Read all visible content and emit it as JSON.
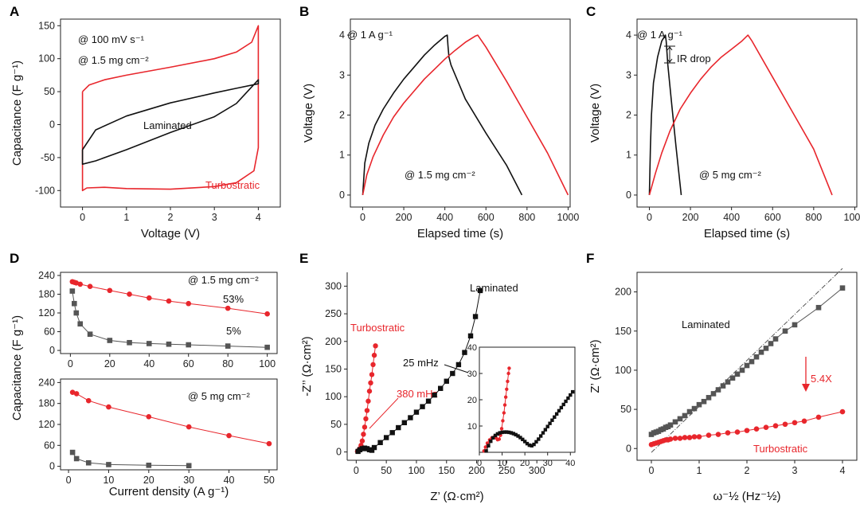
{
  "colors": {
    "red": "#e8262c",
    "black": "#111111",
    "gray": "#555555"
  },
  "chart_data": [
    {
      "id": "A",
      "panel_label": "A",
      "type": "line",
      "xlabel": "Voltage (V)",
      "ylabel": "Capacitance (F g⁻¹)",
      "xlim": [
        -0.5,
        4.5
      ],
      "ylim": [
        -125,
        160
      ],
      "xticks": [
        0,
        1,
        2,
        3,
        4
      ],
      "yticks": [
        -100,
        -50,
        0,
        50,
        100,
        150
      ],
      "annotations": [
        "@ 100 mV s⁻¹",
        "@ 1.5 mg cm⁻²"
      ],
      "series": [
        {
          "name": "Turbostratic",
          "label": "Turbostratic",
          "color": "#e8262c",
          "x": [
            0,
            0.15,
            0.5,
            1,
            2,
            3,
            3.5,
            3.85,
            4,
            4,
            3.9,
            3.5,
            3,
            2,
            1,
            0.5,
            0.1,
            0,
            0
          ],
          "y": [
            50,
            60,
            68,
            75,
            87,
            100,
            110,
            125,
            150,
            -35,
            -70,
            -88,
            -94,
            -98,
            -97,
            -95,
            -96,
            -100,
            50
          ]
        },
        {
          "name": "Laminated",
          "label": "Laminated",
          "color": "#111111",
          "x": [
            0,
            0.3,
            1,
            2,
            3,
            3.5,
            4,
            4,
            3.5,
            3,
            2,
            1,
            0.3,
            0,
            0
          ],
          "y": [
            -38,
            -8,
            13,
            33,
            48,
            55,
            62,
            68,
            32,
            12,
            -12,
            -38,
            -55,
            -60,
            -38
          ]
        }
      ]
    },
    {
      "id": "B",
      "panel_label": "B",
      "type": "line",
      "xlabel": "Elapsed time (s)",
      "ylabel": "Voltage (V)",
      "xlim": [
        -60,
        1010
      ],
      "ylim": [
        -0.3,
        4.4
      ],
      "xticks": [
        0,
        200,
        400,
        600,
        800,
        1000
      ],
      "yticks": [
        0,
        1,
        2,
        3,
        4
      ],
      "annotations": [
        "@ 1 A g⁻¹",
        "@ 1.5 mg cm⁻²"
      ],
      "series": [
        {
          "name": "Laminated",
          "color": "#111111",
          "x": [
            0,
            10,
            30,
            60,
            100,
            150,
            200,
            250,
            300,
            350,
            400,
            412,
            415,
            420,
            430,
            500,
            600,
            700,
            775
          ],
          "y": [
            0,
            0.8,
            1.3,
            1.75,
            2.15,
            2.55,
            2.9,
            3.2,
            3.5,
            3.75,
            3.97,
            4.0,
            3.75,
            3.45,
            3.25,
            2.4,
            1.55,
            0.75,
            0
          ]
        },
        {
          "name": "Turbostratic",
          "color": "#e8262c",
          "x": [
            0,
            20,
            50,
            100,
            150,
            200,
            250,
            300,
            350,
            400,
            450,
            500,
            550,
            560,
            600,
            700,
            800,
            900,
            1000
          ],
          "y": [
            0,
            0.5,
            0.95,
            1.5,
            1.95,
            2.3,
            2.6,
            2.9,
            3.15,
            3.4,
            3.62,
            3.82,
            3.98,
            4.0,
            3.7,
            2.85,
            1.95,
            1.05,
            0
          ]
        }
      ]
    },
    {
      "id": "C",
      "panel_label": "C",
      "type": "line",
      "xlabel": "Elapsed time (s)",
      "ylabel": "Voltage (V)",
      "xlim": [
        -60,
        1010
      ],
      "ylim": [
        -0.3,
        4.4
      ],
      "xticks": [
        0,
        200,
        400,
        600,
        800,
        1000
      ],
      "yticks": [
        0,
        1,
        2,
        3,
        4
      ],
      "annotations": [
        "@ 1 A g⁻¹",
        "IR drop",
        "@ 5 mg cm⁻²"
      ],
      "series": [
        {
          "name": "Laminated",
          "color": "#111111",
          "x": [
            0,
            5,
            10,
            20,
            40,
            60,
            78,
            82,
            90,
            110,
            130,
            155
          ],
          "y": [
            0,
            1.2,
            2.0,
            2.8,
            3.45,
            3.85,
            4.0,
            3.85,
            3.25,
            2.2,
            1.2,
            0
          ]
        },
        {
          "name": "Turbostratic",
          "color": "#e8262c",
          "x": [
            0,
            30,
            60,
            100,
            150,
            200,
            250,
            300,
            350,
            400,
            450,
            480,
            500,
            600,
            700,
            800,
            890
          ],
          "y": [
            0,
            0.55,
            1.05,
            1.6,
            2.15,
            2.55,
            2.9,
            3.2,
            3.45,
            3.65,
            3.85,
            4.0,
            3.85,
            2.95,
            2.05,
            1.15,
            0
          ]
        }
      ]
    },
    {
      "id": "D1",
      "panel_label": "D",
      "type": "line",
      "xlabel": "",
      "ylabel": "",
      "xlim": [
        -5,
        105
      ],
      "ylim": [
        -10,
        250
      ],
      "xticks": [
        0,
        20,
        40,
        60,
        80,
        100
      ],
      "yticks": [
        0,
        60,
        120,
        180,
        240
      ],
      "annotations": [
        "@ 1.5 mg cm⁻²",
        "53%",
        "5%"
      ],
      "series": [
        {
          "name": "Turbostratic",
          "color": "#e8262c",
          "x": [
            1,
            2,
            3,
            5,
            10,
            20,
            30,
            40,
            50,
            60,
            80,
            100
          ],
          "y": [
            220,
            218,
            216,
            212,
            205,
            192,
            180,
            168,
            158,
            150,
            135,
            117
          ]
        },
        {
          "name": "Laminated",
          "color": "#555555",
          "x": [
            1,
            2,
            3,
            5,
            10,
            20,
            30,
            40,
            50,
            60,
            80,
            100
          ],
          "y": [
            190,
            150,
            120,
            85,
            52,
            32,
            25,
            22,
            20,
            18,
            14,
            10
          ]
        }
      ]
    },
    {
      "id": "D2",
      "panel_label": "",
      "type": "line",
      "xlabel": "Current density (A g⁻¹)",
      "ylabel": "Capacitance (F g⁻¹)",
      "xlim": [
        -2,
        52
      ],
      "ylim": [
        -10,
        250
      ],
      "xticks": [
        0,
        10,
        20,
        30,
        40,
        50
      ],
      "yticks": [
        0,
        60,
        120,
        180,
        240
      ],
      "annotations": [
        "@ 5 mg cm⁻²"
      ],
      "series": [
        {
          "name": "Turbostratic",
          "color": "#e8262c",
          "x": [
            1,
            2,
            5,
            10,
            20,
            30,
            40,
            50
          ],
          "y": [
            212,
            208,
            188,
            170,
            142,
            113,
            88,
            65
          ]
        },
        {
          "name": "Laminated",
          "color": "#555555",
          "x": [
            1,
            2,
            5,
            10,
            20,
            30
          ],
          "y": [
            40,
            22,
            10,
            5,
            3,
            2
          ]
        }
      ]
    },
    {
      "id": "E",
      "panel_label": "E",
      "type": "scatter",
      "xlabel": "Z’ (Ω·cm²)",
      "ylabel": "-Z’’ (Ω·cm²)",
      "xlim": [
        -15,
        350
      ],
      "ylim": [
        -15,
        325
      ],
      "xticks": [
        0,
        50,
        100,
        150,
        200,
        250,
        300
      ],
      "yticks": [
        0,
        50,
        100,
        150,
        200,
        250,
        300
      ],
      "annotations": [
        "Laminated",
        "Turbostratic",
        "25 mHz",
        "380 mHz"
      ],
      "series": [
        {
          "name": "Turbostratic",
          "color": "#e8262c",
          "x": [
            2,
            4,
            6,
            8,
            10,
            12,
            14,
            16,
            18,
            20,
            22,
            24,
            26,
            28,
            30,
            32
          ],
          "y": [
            1,
            3,
            6,
            12,
            20,
            32,
            45,
            60,
            75,
            92,
            110,
            125,
            140,
            158,
            175,
            192
          ]
        },
        {
          "name": "Laminated",
          "color": "#111111",
          "x": [
            3,
            6,
            10,
            14,
            18,
            22,
            26,
            30,
            40,
            50,
            60,
            70,
            80,
            90,
            100,
            110,
            120,
            130,
            140,
            150,
            160,
            170,
            180,
            190,
            198,
            206
          ],
          "y": [
            1,
            4,
            6,
            7,
            6,
            4,
            3,
            8,
            17,
            26,
            35,
            44,
            53,
            62,
            72,
            82,
            92,
            103,
            115,
            128,
            142,
            158,
            180,
            210,
            245,
            292
          ]
        }
      ]
    },
    {
      "id": "E_inset",
      "panel_label": "",
      "type": "scatter",
      "xlim": [
        0,
        42
      ],
      "ylim": [
        0,
        40
      ],
      "xticks": [
        0,
        10,
        20,
        30,
        40
      ],
      "yticks": [
        10,
        20,
        30,
        40
      ],
      "series": [
        {
          "name": "Turbostratic",
          "color": "#e8262c",
          "x": [
            2,
            2.7,
            3.5,
            4.5,
            5.5,
            6.5,
            7.3,
            8,
            8.7,
            9.3,
            9.8,
            10.3,
            10.8,
            11.2,
            11.6,
            12,
            12.4,
            12.8,
            13.1
          ],
          "y": [
            0.5,
            2,
            3.5,
            4.7,
            5.5,
            5.8,
            5.5,
            4.8,
            5,
            6.5,
            9,
            12,
            15,
            18,
            21,
            24,
            27,
            30,
            32
          ]
        },
        {
          "name": "Laminated",
          "color": "#111111",
          "x": [
            3,
            4,
            5,
            6,
            7,
            8,
            9,
            10,
            11,
            12,
            13,
            14,
            15,
            16,
            17,
            18,
            19,
            20,
            21,
            22,
            23,
            24,
            25,
            26,
            27,
            28,
            29,
            30,
            31,
            32,
            33,
            34,
            35,
            36,
            37,
            38,
            39,
            40,
            41
          ],
          "y": [
            0.5,
            2.5,
            4.2,
            5.5,
            6.4,
            7,
            7.4,
            7.6,
            7.7,
            7.7,
            7.6,
            7.4,
            7.1,
            6.7,
            6.2,
            5.6,
            4.9,
            4.1,
            3.3,
            2.7,
            2.5,
            3,
            4,
            5,
            6.2,
            7.4,
            8.6,
            9.8,
            11,
            12.2,
            13.4,
            14.6,
            15.8,
            17,
            18.2,
            19.4,
            20.6,
            21.8,
            23
          ]
        }
      ]
    },
    {
      "id": "F",
      "panel_label": "F",
      "type": "scatter",
      "xlabel": "ω⁻½ (Hz⁻½)",
      "ylabel": "Z’ (Ω·cm²)",
      "xlim": [
        -0.3,
        4.3
      ],
      "ylim": [
        -15,
        225
      ],
      "xticks": [
        0,
        1,
        2,
        3,
        4
      ],
      "yticks": [
        0,
        50,
        100,
        150,
        200
      ],
      "annotations": [
        "Laminated",
        "5.4X",
        "Turbostratic"
      ],
      "series": [
        {
          "name": "Laminated",
          "color": "#555555",
          "x": [
            0,
            0.05,
            0.1,
            0.15,
            0.2,
            0.25,
            0.3,
            0.35,
            0.4,
            0.5,
            0.6,
            0.7,
            0.8,
            0.9,
            1.0,
            1.1,
            1.2,
            1.3,
            1.4,
            1.5,
            1.6,
            1.7,
            1.8,
            1.9,
            2.0,
            2.1,
            2.2,
            2.3,
            2.4,
            2.5,
            2.6,
            2.8,
            3.0,
            3.5,
            4.0
          ],
          "y": [
            18,
            20,
            21,
            22,
            24,
            25,
            27,
            28,
            30,
            34,
            38,
            42,
            47,
            51,
            56,
            60,
            65,
            70,
            75,
            80,
            85,
            90,
            95,
            100,
            106,
            111,
            117,
            123,
            128,
            134,
            140,
            150,
            158,
            180,
            205
          ]
        },
        {
          "name": "Turbostratic",
          "color": "#e8262c",
          "x": [
            0,
            0.05,
            0.1,
            0.15,
            0.2,
            0.25,
            0.3,
            0.35,
            0.4,
            0.5,
            0.6,
            0.7,
            0.8,
            0.9,
            1.0,
            1.2,
            1.4,
            1.6,
            1.8,
            2.0,
            2.2,
            2.4,
            2.6,
            2.8,
            3.0,
            3.2,
            3.5,
            4.0
          ],
          "y": [
            5,
            6,
            7,
            8,
            9,
            10,
            11,
            11,
            12,
            13,
            13,
            14,
            14,
            15,
            15,
            17,
            18,
            20,
            21,
            23,
            25,
            27,
            29,
            31,
            33,
            35,
            40,
            47
          ]
        }
      ],
      "fit_lines": [
        {
          "name": "fit",
          "x": [
            0,
            4.0
          ],
          "y": [
            -5,
            230
          ]
        }
      ]
    }
  ]
}
